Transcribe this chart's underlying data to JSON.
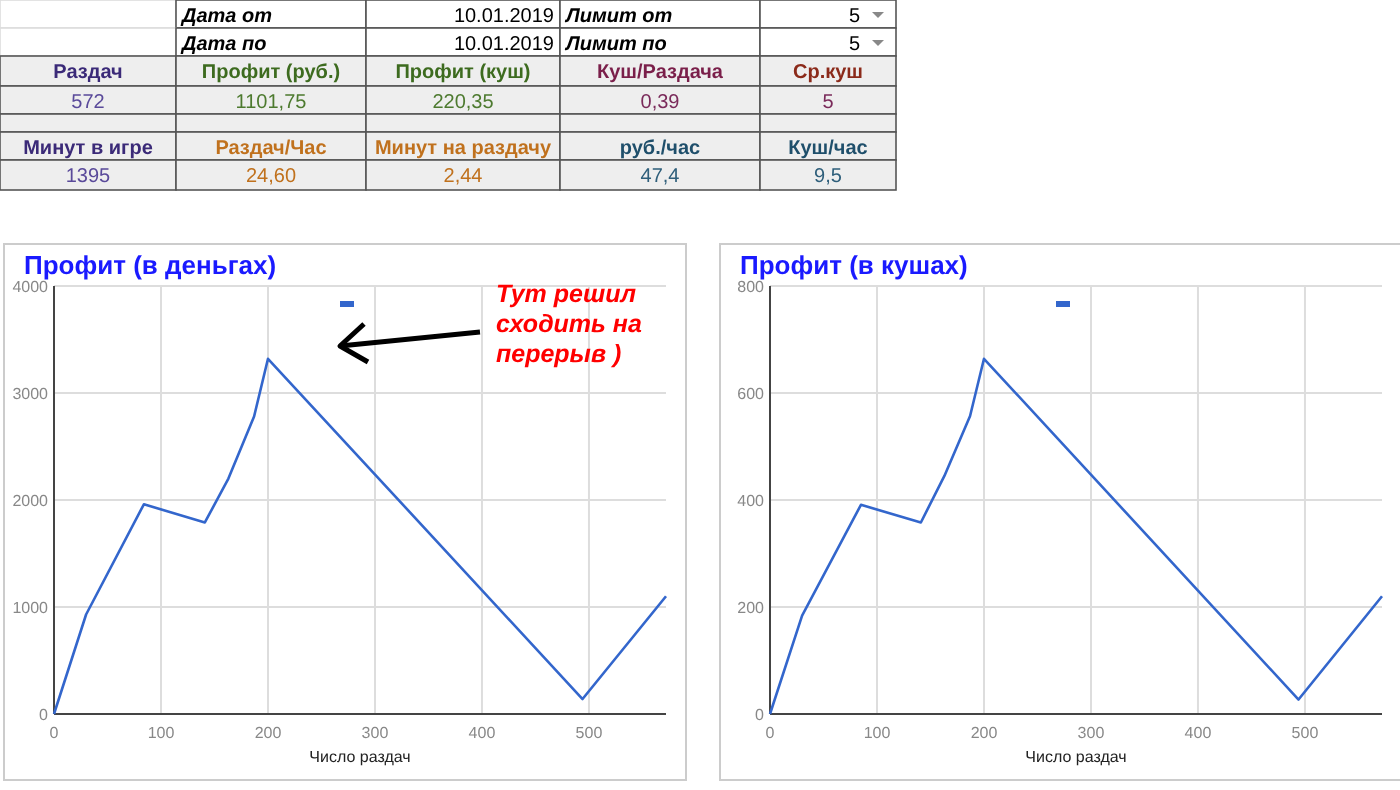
{
  "chart_data": [
    {
      "type": "other",
      "annotations": [
        "Дата от",
        "10.01.2019",
        "Лимит от",
        "5",
        "Дата по",
        "10.01.2019",
        "Лимит по",
        "5",
        "Раздач",
        "Профит (руб.)",
        "Профит (куш)",
        "Куш/Раздача",
        "Ср.куш",
        "572",
        "1101,75",
        "220,35",
        "0,39",
        "5",
        "Минут в игре",
        "Раздач/Час",
        "Минут на раздачу",
        "руб./час",
        "Куш/час",
        "1395",
        "24,60",
        "2,44",
        "47,4",
        "9,5"
      ]
    },
    {
      "type": "line",
      "title": "Профит (в деньгах)",
      "xlabel": "Число раздач",
      "x": [
        0,
        30,
        84,
        141,
        163,
        187,
        200,
        494,
        572
      ],
      "series": [
        {
          "color": "#3366cc",
          "values": [
            0,
            930,
            1960,
            1790,
            2200,
            2780,
            3320,
            140,
            1100
          ]
        }
      ],
      "xlim": [
        0,
        572
      ],
      "ylim": [
        0,
        4000
      ],
      "xticks": [
        0,
        100,
        200,
        300,
        400,
        500
      ],
      "yticks": [
        0,
        1000,
        2000,
        3000,
        4000
      ],
      "grid": true,
      "annotations": [
        "Тут решил сходить на перерыв )"
      ]
    },
    {
      "type": "line",
      "title": "Профит (в кушах)",
      "xlabel": "Число раздач",
      "x": [
        0,
        30,
        85,
        141,
        163,
        187,
        200,
        494,
        572
      ],
      "series": [
        {
          "color": "#3366cc",
          "values": [
            0,
            184,
            391,
            358,
            445,
            557,
            664,
            27,
            220
          ]
        }
      ],
      "xlim": [
        0,
        572
      ],
      "ylim": [
        0,
        800
      ],
      "xticks": [
        0,
        100,
        200,
        300,
        400,
        500
      ],
      "yticks": [
        0,
        200,
        400,
        600,
        800
      ],
      "grid": true
    }
  ]
}
